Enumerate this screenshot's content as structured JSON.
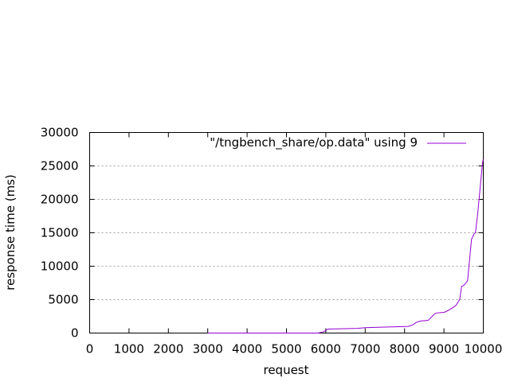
{
  "chart_data": {
    "type": "line",
    "title": "",
    "xlabel": "request",
    "ylabel": "response time (ms)",
    "xlim": [
      0,
      10000
    ],
    "ylim": [
      0,
      30000
    ],
    "x_ticks": [
      "0",
      "1000",
      "2000",
      "3000",
      "4000",
      "5000",
      "6000",
      "7000",
      "8000",
      "9000",
      "10000"
    ],
    "y_ticks": [
      "0",
      "5000",
      "10000",
      "15000",
      "20000",
      "25000",
      "30000"
    ],
    "grid": "horizontal-dotted",
    "legend_position": "top-right",
    "series": [
      {
        "name": "\"/tngbench_share/op.data\" using 9",
        "color": "#9400d3",
        "x": [
          3000,
          5800,
          5950,
          6050,
          6800,
          7000,
          7500,
          8100,
          8200,
          8300,
          8400,
          8600,
          8750,
          8800,
          9000,
          9050,
          9200,
          9300,
          9400,
          9450,
          9500,
          9600,
          9700,
          9760,
          9800,
          9860,
          9900,
          9940,
          9980,
          10000
        ],
        "values": [
          0,
          0,
          200,
          600,
          700,
          800,
          900,
          1000,
          1200,
          1600,
          1800,
          1900,
          2800,
          3000,
          3100,
          3200,
          3700,
          4100,
          5000,
          7000,
          7100,
          7800,
          14000,
          14800,
          15000,
          18000,
          20500,
          23000,
          25500,
          26000
        ]
      }
    ]
  }
}
